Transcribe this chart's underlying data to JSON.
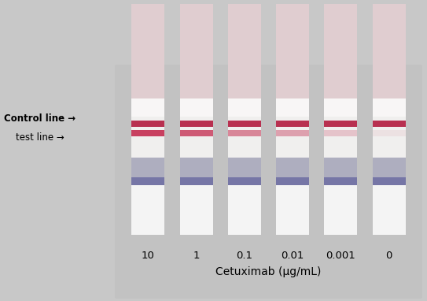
{
  "bg_color": "#c8c8c8",
  "panel_color": "#c2c2c2",
  "strip_inner_color": "#f0efee",
  "top_pad_color": "#e0cdd0",
  "white_zone_color": "#f8f6f6",
  "control_line_color": "#b83050",
  "test_line_color": "#c84060",
  "sample_pad_top_color": "#9898b0",
  "sample_pad_bot_color": "#6868a0",
  "bottom_pad_color": "#f4f4f4",
  "num_strips": 6,
  "concentrations": [
    "10",
    "1",
    "0.1",
    "0.01",
    "0.001",
    "0"
  ],
  "xlabel": "Cetuximab (μg/mL)",
  "annotation_control": "Control line →",
  "annotation_test": "test line →",
  "fig_width": 5.43,
  "fig_height": 3.82,
  "dpi": 100,
  "test_line_alphas": [
    1.0,
    0.85,
    0.6,
    0.45,
    0.25,
    0.08
  ]
}
